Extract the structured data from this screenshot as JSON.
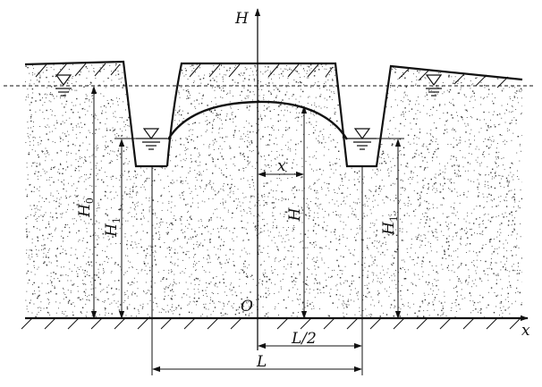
{
  "labels": {
    "axis_vertical": "H",
    "axis_horizontal": "x",
    "origin": "O",
    "h0": {
      "main": "H",
      "sub": "0"
    },
    "h1_left": {
      "main": "H",
      "sub": "1"
    },
    "h1_right": {
      "main": "H",
      "sub": "1"
    },
    "h_mid": "H",
    "x_dim": "x",
    "half_length": "L/2",
    "length": "L"
  }
}
